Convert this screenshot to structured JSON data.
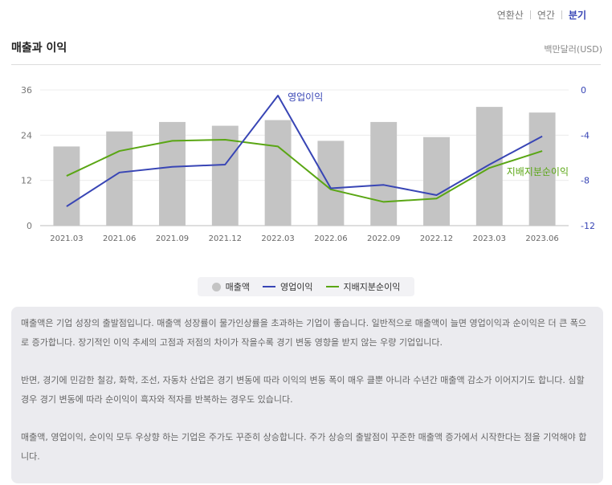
{
  "header": {
    "tabs": [
      {
        "label": "연환산",
        "active": false
      },
      {
        "label": "연간",
        "active": false
      },
      {
        "label": "분기",
        "active": true
      }
    ],
    "title": "매출과 이익",
    "unit": "백만달러(USD)"
  },
  "legend": {
    "revenue": "매출액",
    "operating": "영업이익",
    "net": "지배지분순이익"
  },
  "colors": {
    "revenue": "#c4c4c4",
    "operating": "#3845b5",
    "net": "#5aa614",
    "active_tab": "#3845b5"
  },
  "chart_data": {
    "type": "bar",
    "categories": [
      "2021.03",
      "2021.06",
      "2021.09",
      "2021.12",
      "2022.03",
      "2022.06",
      "2022.09",
      "2022.12",
      "2023.03",
      "2023.06"
    ],
    "series": [
      {
        "name": "매출액",
        "type": "bar",
        "axis": "left",
        "values": [
          21,
          25,
          27.5,
          26.5,
          28,
          22.5,
          27.5,
          23.5,
          31.5,
          30
        ]
      },
      {
        "name": "영업이익",
        "type": "line",
        "axis": "right",
        "values": [
          -10.3,
          -7.3,
          -6.8,
          -6.6,
          -0.5,
          -8.7,
          -8.4,
          -9.3,
          -6.6,
          -4.1
        ]
      },
      {
        "name": "지배지분순이익",
        "type": "line",
        "axis": "right",
        "values": [
          -7.6,
          -5.4,
          -4.5,
          -4.4,
          -5,
          -8.8,
          -9.9,
          -9.6,
          -6.9,
          -5.4
        ]
      }
    ],
    "left_axis": {
      "ticks": [
        0,
        12,
        24,
        36
      ],
      "ylim": [
        0,
        36
      ]
    },
    "right_axis": {
      "ticks": [
        0,
        -4,
        -8,
        -12
      ],
      "ylim": [
        -12,
        0
      ]
    },
    "annotations": [
      {
        "text": "영업이익",
        "series": "영업이익"
      },
      {
        "text": "지배지분순이익",
        "series": "지배지분순이익"
      }
    ]
  },
  "description": {
    "p1": "매출액은 기업 성장의 출발점입니다. 매출액 성장률이 물가인상률을 초과하는 기업이 좋습니다. 일반적으로 매출액이 늘면 영업이익과 순이익은 더 큰 폭으로 증가합니다. 장기적인 이익 추세의 고점과 저점의 차이가 작을수록 경기 변동 영향을 받지 않는 우량 기업입니다.",
    "p2": "반면, 경기에 민감한 철강, 화학, 조선, 자동차 산업은 경기 변동에 따라 이익의 변동 폭이 매우 클뿐 아니라 수년간 매출액 감소가 이어지기도 합니다. 심할 경우 경기 변동에 따라 순이익이 흑자와 적자를 반복하는 경우도 있습니다.",
    "p3": "매출액, 영업이익, 순이익 모두 우상향 하는 기업은 주가도 꾸준히 상승합니다. 주가 상승의 출발점이 꾸준한 매출액 증가에서 시작한다는 점을 기억해야 합니다."
  }
}
